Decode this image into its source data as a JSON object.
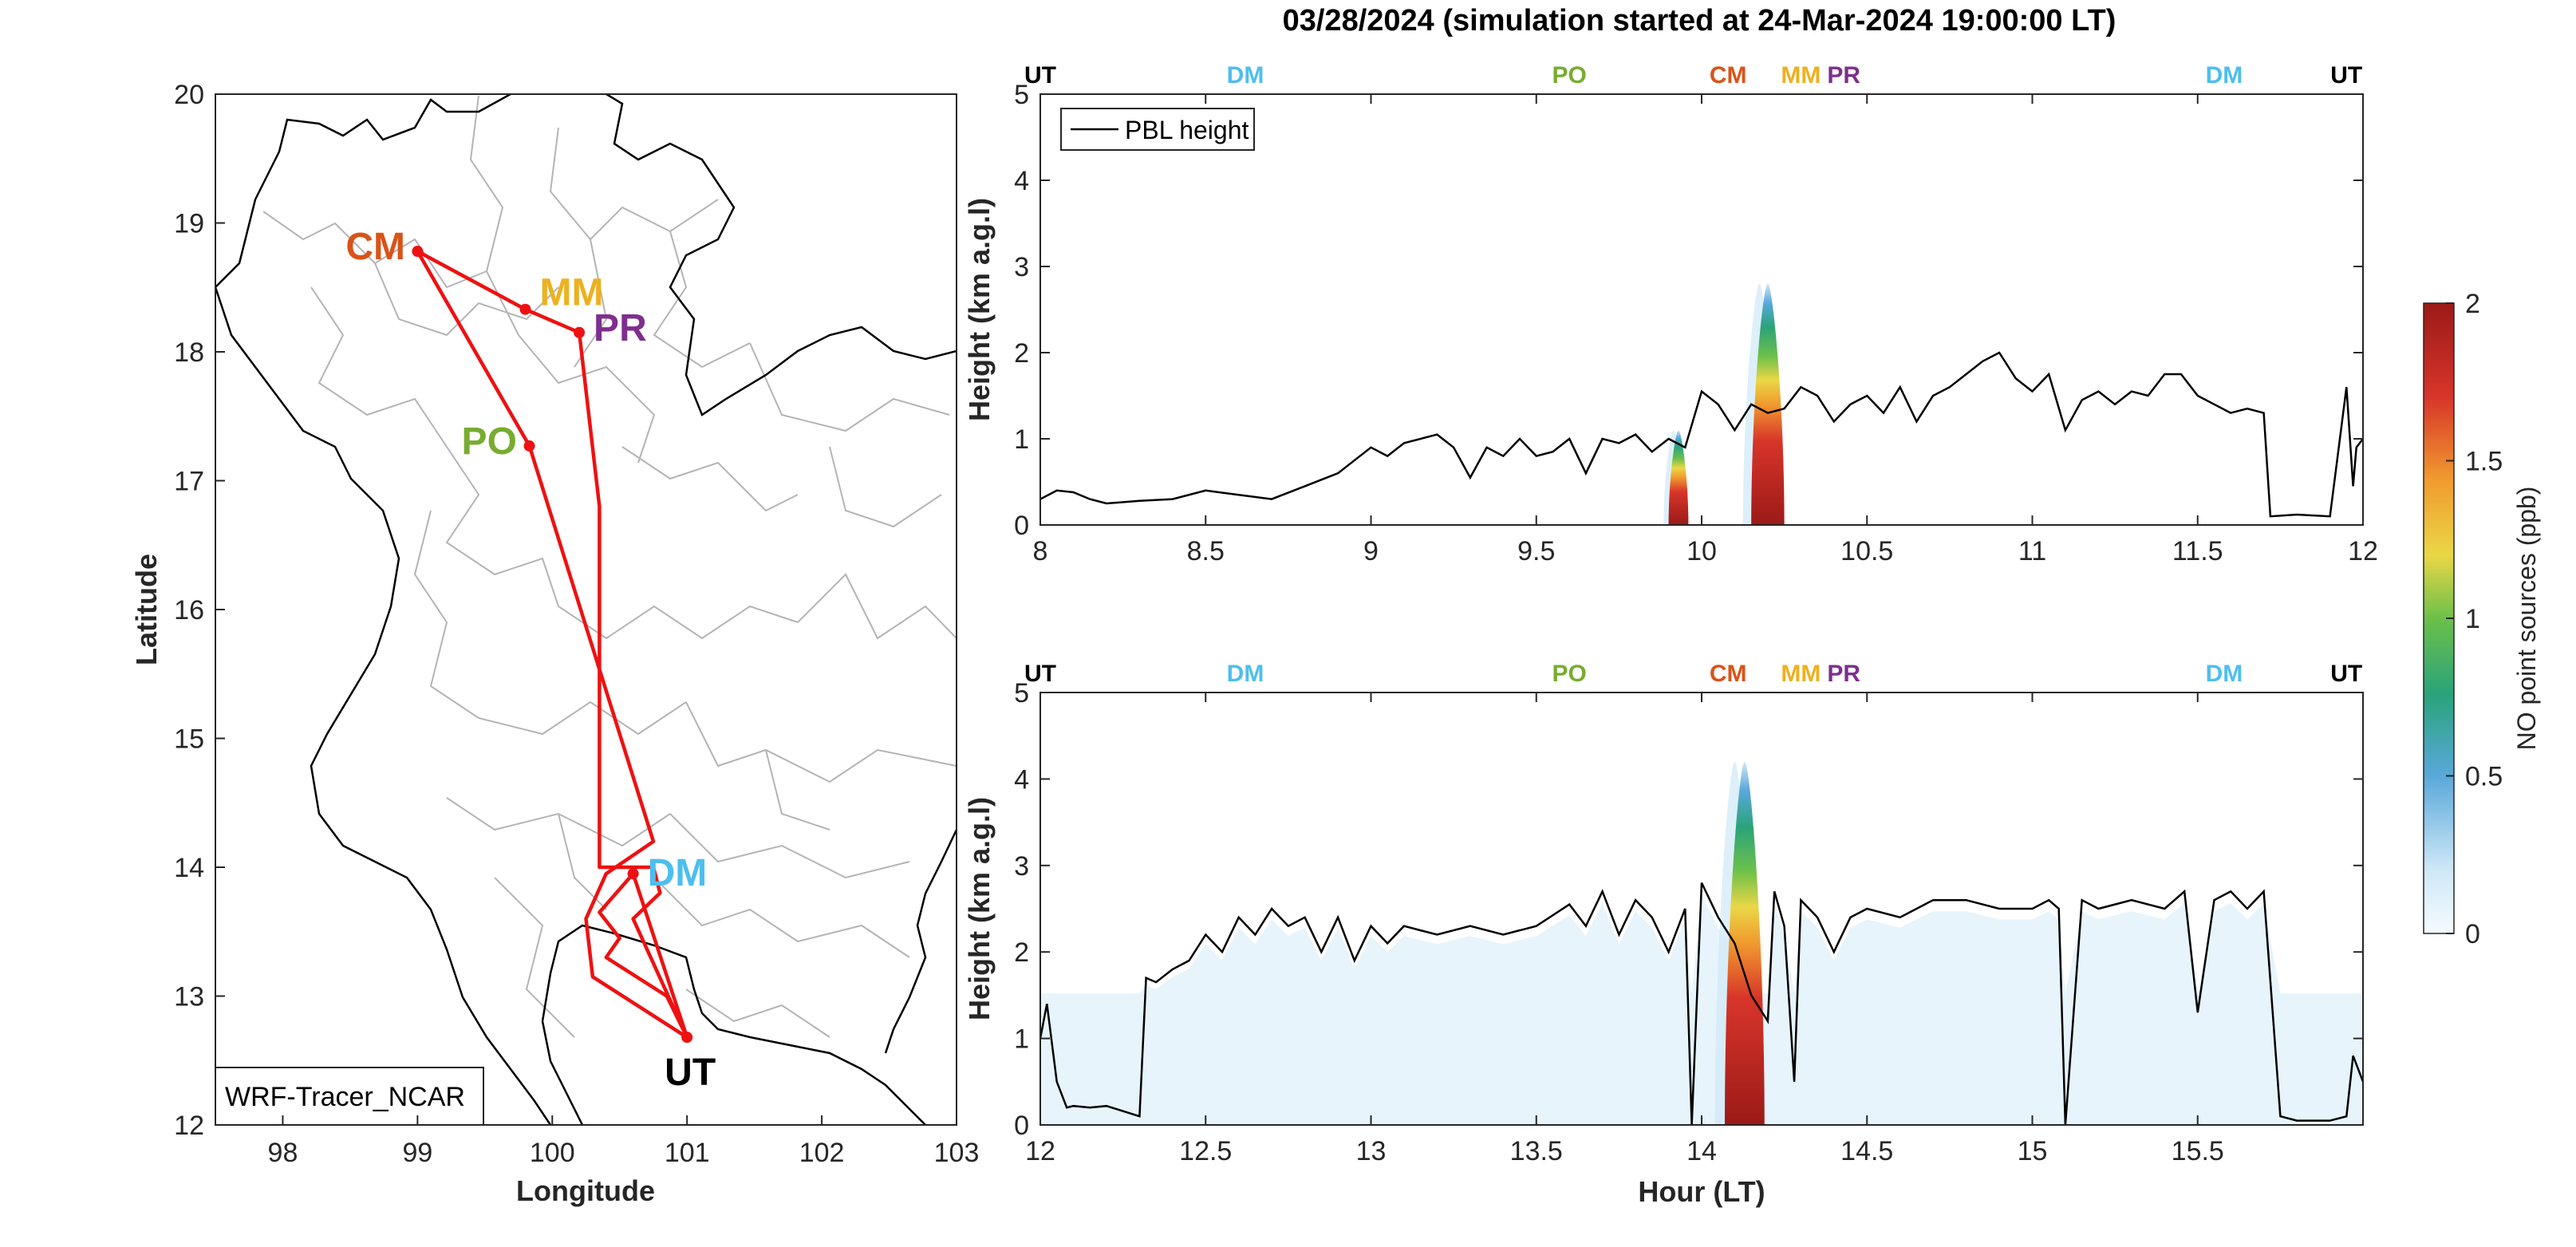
{
  "figure": {
    "title": "03/28/2024 (simulation started at 24-Mar-2024 19:00:00 LT)",
    "site_colors": {
      "UT": "#000000",
      "DM": "#4dbeee",
      "PO": "#77ac30",
      "CM": "#d95319",
      "MM": "#edb120",
      "PR": "#7e2f8e"
    },
    "track_color": "#ee1111"
  },
  "map": {
    "xlabel": "Longitude",
    "ylabel": "Latitude",
    "model_label": "WRF-Tracer_NCAR",
    "xlim": [
      97.5,
      103
    ],
    "ylim": [
      12,
      20
    ],
    "xticks": [
      "98",
      "99",
      "100",
      "101",
      "102",
      "103"
    ],
    "yticks": [
      "12",
      "13",
      "14",
      "15",
      "16",
      "17",
      "18",
      "19",
      "20"
    ],
    "sites": [
      {
        "name": "CM",
        "lon": 99.0,
        "lat": 18.78
      },
      {
        "name": "MM",
        "lon": 99.8,
        "lat": 18.33
      },
      {
        "name": "PR",
        "lon": 100.2,
        "lat": 18.15
      },
      {
        "name": "PO",
        "lon": 99.83,
        "lat": 17.27
      },
      {
        "name": "DM",
        "lon": 100.6,
        "lat": 13.95
      },
      {
        "name": "UT",
        "lon": 101.0,
        "lat": 12.68
      }
    ],
    "track": [
      [
        101.0,
        12.68
      ],
      [
        100.6,
        13.95
      ],
      [
        100.35,
        13.65
      ],
      [
        100.5,
        13.45
      ],
      [
        100.4,
        13.3
      ],
      [
        100.85,
        13.0
      ],
      [
        101.0,
        12.68
      ],
      [
        100.3,
        13.15
      ],
      [
        100.25,
        13.6
      ],
      [
        100.4,
        13.95
      ],
      [
        100.75,
        14.2
      ],
      [
        99.83,
        17.27
      ],
      [
        99.0,
        18.78
      ],
      [
        99.8,
        18.33
      ],
      [
        100.2,
        18.15
      ],
      [
        100.35,
        16.8
      ],
      [
        100.35,
        14.0
      ],
      [
        100.75,
        14.0
      ],
      [
        100.8,
        13.8
      ],
      [
        100.6,
        13.6
      ],
      [
        101.0,
        12.68
      ]
    ]
  },
  "chart_data": [
    {
      "type": "heatmap",
      "title": "03/28/2024 (simulation started at 24-Mar-2024 19:00:00 LT)",
      "xlabel": "",
      "ylabel": "Height (km a.g.l)",
      "xlim": [
        8,
        12
      ],
      "ylim": [
        0,
        5
      ],
      "xticks": [
        "8",
        "8.5",
        "9",
        "9.5",
        "10",
        "10.5",
        "11",
        "11.5",
        "12"
      ],
      "yticks": [
        "0",
        "1",
        "2",
        "3",
        "4",
        "5"
      ],
      "legend": {
        "label": "PBL height",
        "placement": "top-left"
      },
      "site_markers": [
        {
          "name": "UT",
          "x": 8.0
        },
        {
          "name": "DM",
          "x": 8.62
        },
        {
          "name": "PO",
          "x": 9.6
        },
        {
          "name": "CM",
          "x": 10.08
        },
        {
          "name": "MM",
          "x": 10.3
        },
        {
          "name": "PR",
          "x": 10.43
        },
        {
          "name": "DM",
          "x": 11.58
        },
        {
          "name": "UT",
          "x": 11.95
        }
      ],
      "pbl_height": {
        "x": [
          8.0,
          8.05,
          8.1,
          8.15,
          8.2,
          8.3,
          8.4,
          8.5,
          8.6,
          8.7,
          8.8,
          8.9,
          9.0,
          9.05,
          9.1,
          9.2,
          9.25,
          9.3,
          9.35,
          9.4,
          9.45,
          9.5,
          9.55,
          9.6,
          9.65,
          9.7,
          9.75,
          9.8,
          9.85,
          9.9,
          9.95,
          10.0,
          10.05,
          10.1,
          10.15,
          10.2,
          10.25,
          10.3,
          10.35,
          10.4,
          10.45,
          10.5,
          10.55,
          10.6,
          10.65,
          10.7,
          10.75,
          10.8,
          10.85,
          10.9,
          10.95,
          11.0,
          11.05,
          11.1,
          11.15,
          11.2,
          11.25,
          11.3,
          11.35,
          11.4,
          11.45,
          11.5,
          11.55,
          11.6,
          11.65,
          11.7,
          11.72,
          11.8,
          11.9,
          11.95,
          11.97,
          11.98,
          12.0
        ],
        "y": [
          0.3,
          0.4,
          0.38,
          0.3,
          0.25,
          0.28,
          0.3,
          0.4,
          0.35,
          0.3,
          0.45,
          0.6,
          0.9,
          0.8,
          0.95,
          1.05,
          0.9,
          0.55,
          0.9,
          0.8,
          1.0,
          0.8,
          0.85,
          1.0,
          0.6,
          1.0,
          0.95,
          1.05,
          0.85,
          1.0,
          0.9,
          1.55,
          1.4,
          1.1,
          1.4,
          1.3,
          1.35,
          1.6,
          1.5,
          1.2,
          1.4,
          1.5,
          1.3,
          1.6,
          1.2,
          1.5,
          1.6,
          1.75,
          1.9,
          2.0,
          1.7,
          1.55,
          1.75,
          1.1,
          1.45,
          1.55,
          1.4,
          1.55,
          1.5,
          1.75,
          1.75,
          1.5,
          1.4,
          1.3,
          1.35,
          1.3,
          0.1,
          0.12,
          0.1,
          1.6,
          0.45,
          0.9,
          1.0
        ]
      },
      "tracer_plumes": [
        {
          "x": 9.93,
          "halfwidth": 0.03,
          "top": 1.1,
          "peak_ppb": 1.5
        },
        {
          "x": 10.2,
          "halfwidth": 0.05,
          "top": 2.8,
          "peak_ppb": 2.0
        }
      ]
    },
    {
      "type": "heatmap",
      "xlabel": "Hour (LT)",
      "ylabel": "Height (km a.g.l)",
      "xlim": [
        12,
        16
      ],
      "ylim": [
        0,
        5
      ],
      "xticks": [
        "12",
        "12.5",
        "13",
        "13.5",
        "14",
        "14.5",
        "15",
        "15.5"
      ],
      "yticks": [
        "0",
        "1",
        "2",
        "3",
        "4",
        "5"
      ],
      "site_markers": [
        {
          "name": "UT",
          "x": 12.0
        },
        {
          "name": "DM",
          "x": 12.62
        },
        {
          "name": "PO",
          "x": 13.6
        },
        {
          "name": "CM",
          "x": 14.08
        },
        {
          "name": "MM",
          "x": 14.3
        },
        {
          "name": "PR",
          "x": 14.43
        },
        {
          "name": "DM",
          "x": 15.58
        },
        {
          "name": "UT",
          "x": 15.95
        }
      ],
      "pbl_height": {
        "x": [
          12.0,
          12.02,
          12.05,
          12.08,
          12.1,
          12.15,
          12.2,
          12.3,
          12.32,
          12.35,
          12.4,
          12.45,
          12.5,
          12.55,
          12.6,
          12.65,
          12.7,
          12.75,
          12.8,
          12.85,
          12.9,
          12.95,
          13.0,
          13.05,
          13.1,
          13.2,
          13.3,
          13.4,
          13.5,
          13.6,
          13.65,
          13.7,
          13.75,
          13.8,
          13.85,
          13.9,
          13.95,
          13.97,
          14.0,
          14.05,
          14.1,
          14.15,
          14.2,
          14.22,
          14.25,
          14.28,
          14.3,
          14.35,
          14.4,
          14.45,
          14.5,
          14.6,
          14.7,
          14.8,
          14.9,
          15.0,
          15.05,
          15.08,
          15.1,
          15.15,
          15.2,
          15.3,
          15.4,
          15.46,
          15.5,
          15.55,
          15.6,
          15.65,
          15.7,
          15.75,
          15.8,
          15.9,
          15.95,
          15.97,
          16.0
        ],
        "y": [
          1.0,
          1.4,
          0.5,
          0.2,
          0.22,
          0.2,
          0.22,
          0.1,
          1.7,
          1.65,
          1.8,
          1.9,
          2.2,
          2.0,
          2.4,
          2.2,
          2.5,
          2.3,
          2.4,
          2.0,
          2.4,
          1.9,
          2.3,
          2.1,
          2.3,
          2.2,
          2.3,
          2.2,
          2.3,
          2.55,
          2.3,
          2.7,
          2.2,
          2.6,
          2.4,
          2.0,
          2.5,
          0.0,
          2.8,
          2.4,
          2.1,
          1.5,
          1.2,
          2.7,
          2.3,
          0.5,
          2.6,
          2.4,
          2.0,
          2.4,
          2.5,
          2.4,
          2.6,
          2.6,
          2.5,
          2.5,
          2.6,
          2.5,
          0.0,
          2.6,
          2.5,
          2.6,
          2.5,
          2.7,
          1.3,
          2.6,
          2.7,
          2.5,
          2.7,
          0.1,
          0.05,
          0.05,
          0.1,
          0.8,
          0.5
        ]
      },
      "tracer_plumes": [
        {
          "x": 14.13,
          "halfwidth": 0.06,
          "top": 4.2,
          "peak_ppb": 2.0
        }
      ]
    }
  ],
  "colorbar": {
    "label": "NO point sources (ppb)",
    "range": [
      0,
      2
    ],
    "ticks": [
      "0",
      "0.5",
      "1",
      "1.5",
      "2"
    ],
    "colormap": "white-lightblue-blue-green-yellow-orange-red-darkred"
  }
}
